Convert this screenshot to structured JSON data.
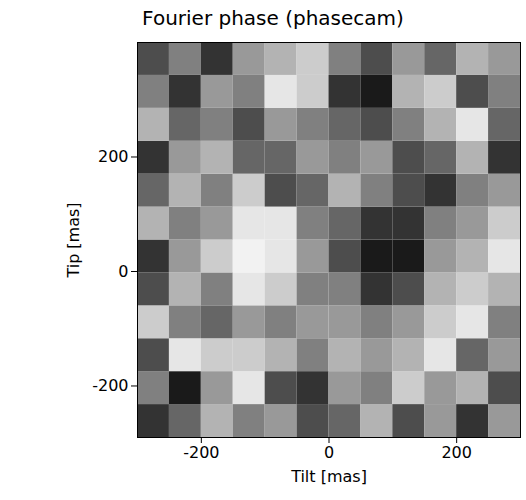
{
  "chart_data": {
    "type": "heatmap",
    "title": "Fourier phase (phasecam)",
    "x_label": "Tilt [mas]",
    "y_label": "Tip [mas]",
    "xlim": [
      -300,
      300
    ],
    "ylim": [
      -290,
      400
    ],
    "xticks": [
      -200,
      0,
      200
    ],
    "yticks": [
      -200,
      0,
      200
    ],
    "colors": [
      "#000000",
      "#ffffff"
    ],
    "zlim": [
      0,
      1
    ],
    "cells": {
      "x_edges": [
        -300,
        -250,
        -200,
        -150,
        -100,
        -50,
        0,
        50,
        100,
        150,
        200,
        250,
        300
      ],
      "y_edges": [
        -290,
        -232.5,
        -175,
        -117.5,
        -60,
        -2.5,
        55,
        112.5,
        170,
        227.5,
        285,
        342.5,
        400
      ],
      "values": [
        [
          0.2,
          0.4,
          0.7,
          0.5,
          0.6,
          0.3,
          0.4,
          0.7,
          0.3,
          0.6,
          0.2,
          0.6
        ],
        [
          0.5,
          0.1,
          0.6,
          0.9,
          0.3,
          0.2,
          0.6,
          0.5,
          0.8,
          0.6,
          0.7,
          0.3
        ],
        [
          0.3,
          0.9,
          0.8,
          0.8,
          0.7,
          0.5,
          0.7,
          0.6,
          0.7,
          0.9,
          0.4,
          0.6
        ],
        [
          0.8,
          0.5,
          0.4,
          0.6,
          0.5,
          0.6,
          0.6,
          0.5,
          0.6,
          0.8,
          0.9,
          0.5
        ],
        [
          0.3,
          0.7,
          0.5,
          0.9,
          0.8,
          0.5,
          0.5,
          0.2,
          0.3,
          0.7,
          0.8,
          0.7
        ],
        [
          0.2,
          0.6,
          0.8,
          0.95,
          0.9,
          0.6,
          0.3,
          0.1,
          0.1,
          0.6,
          0.7,
          0.9
        ],
        [
          0.7,
          0.5,
          0.6,
          0.9,
          0.9,
          0.5,
          0.4,
          0.2,
          0.2,
          0.5,
          0.6,
          0.8
        ],
        [
          0.4,
          0.7,
          0.5,
          0.8,
          0.3,
          0.4,
          0.7,
          0.5,
          0.3,
          0.2,
          0.5,
          0.6
        ],
        [
          0.2,
          0.6,
          0.7,
          0.4,
          0.4,
          0.6,
          0.5,
          0.6,
          0.3,
          0.4,
          0.7,
          0.2
        ],
        [
          0.7,
          0.4,
          0.5,
          0.3,
          0.6,
          0.5,
          0.4,
          0.3,
          0.5,
          0.7,
          0.9,
          0.4
        ],
        [
          0.5,
          0.2,
          0.6,
          0.5,
          0.9,
          0.8,
          0.2,
          0.1,
          0.7,
          0.8,
          0.3,
          0.5
        ],
        [
          0.3,
          0.5,
          0.2,
          0.6,
          0.7,
          0.8,
          0.5,
          0.3,
          0.6,
          0.4,
          0.7,
          0.6
        ]
      ]
    }
  }
}
